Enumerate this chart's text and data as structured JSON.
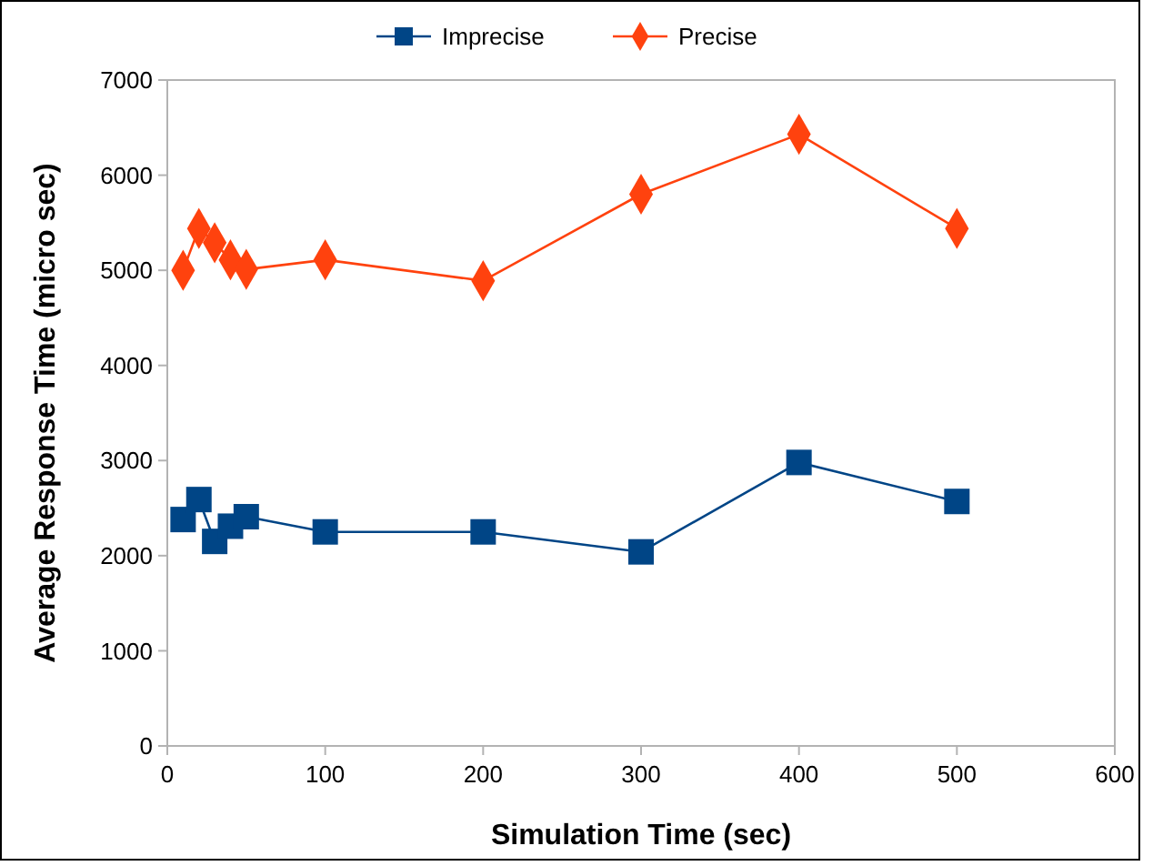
{
  "chart_data": {
    "type": "line",
    "xlabel": "Simulation Time (sec)",
    "ylabel": "Average Response Time (micro sec)",
    "x": [
      10,
      20,
      30,
      40,
      50,
      100,
      200,
      300,
      400,
      500
    ],
    "series": [
      {
        "name": "Imprecise",
        "color": "#004586",
        "marker": "square",
        "values": [
          2380,
          2590,
          2150,
          2310,
          2410,
          2250,
          2250,
          2040,
          2980,
          2570
        ]
      },
      {
        "name": "Precise",
        "color": "#ff420e",
        "marker": "diamond",
        "values": [
          5000,
          5440,
          5290,
          5110,
          5010,
          5110,
          4890,
          5800,
          6430,
          5440
        ]
      }
    ],
    "xlim": [
      0,
      600
    ],
    "xticks": [
      0,
      100,
      200,
      300,
      400,
      500,
      600
    ],
    "ylim": [
      0,
      7000
    ],
    "yticks": [
      0,
      1000,
      2000,
      3000,
      4000,
      5000,
      6000,
      7000
    ],
    "legend": "top",
    "grid": false,
    "line_style": "solid"
  }
}
